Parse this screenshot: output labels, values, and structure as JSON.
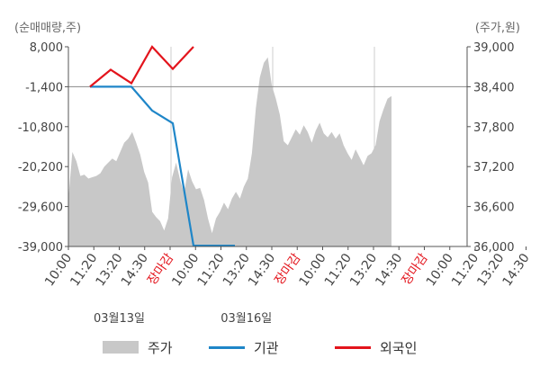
{
  "units": {
    "left": "(순매매량,주)",
    "right": "(주가,원)"
  },
  "legend": {
    "price": "주가",
    "institution": "기관",
    "foreign": "외국인"
  },
  "colors": {
    "price": "#c8c8c8",
    "institution": "#1f86c8",
    "foreign": "#e3141c",
    "axis": "#555555",
    "grid": "#cccccc",
    "market_close": "#e3141c"
  },
  "chart_data": {
    "type": "line",
    "title": "",
    "y_left": {
      "label": "(순매매량,주)",
      "range": [
        -39000,
        8000
      ],
      "ticks": [
        8000,
        -1400,
        -10800,
        -20200,
        -29600,
        -39000
      ],
      "tick_labels": [
        "8,000",
        "-1,400",
        "-10,800",
        "-20,200",
        "-29,600",
        "-39,000"
      ]
    },
    "y_right": {
      "label": "(주가,원)",
      "range": [
        36000,
        39000
      ],
      "ticks": [
        39000,
        38400,
        37800,
        37200,
        36600,
        36000
      ],
      "tick_labels": [
        "39,000",
        "38,400",
        "37,800",
        "37,200",
        "36,600",
        "36,000"
      ]
    },
    "x_labels": [
      "10:00",
      "11:20",
      "13:20",
      "14:30",
      "장마감",
      "10:00",
      "11:20",
      "13:20",
      "14:30",
      "장마감",
      "10:00",
      "11:20",
      "13:20",
      "14:30",
      "장마감",
      "10:00",
      "11:20",
      "13:20",
      "14:30"
    ],
    "x_label_is_close": [
      false,
      false,
      false,
      false,
      true,
      false,
      false,
      false,
      false,
      true,
      false,
      false,
      false,
      false,
      true,
      false,
      false,
      false,
      false
    ],
    "date_labels": [
      {
        "text": "03월13일",
        "at_label_index": 2
      },
      {
        "text": "03월16일",
        "at_label_index": 7
      }
    ],
    "series": [
      {
        "name": "주가",
        "kind": "area",
        "axis": "right",
        "points": [
          [
            0,
            36720
          ],
          [
            1,
            37420
          ],
          [
            2,
            37280
          ],
          [
            3,
            37060
          ],
          [
            4,
            37080
          ],
          [
            5,
            37020
          ],
          [
            6,
            37040
          ],
          [
            7,
            37060
          ],
          [
            8,
            37100
          ],
          [
            9,
            37200
          ],
          [
            10,
            37260
          ],
          [
            11,
            37320
          ],
          [
            12,
            37280
          ],
          [
            13,
            37420
          ],
          [
            14,
            37560
          ],
          [
            15,
            37620
          ],
          [
            16,
            37720
          ],
          [
            17,
            37560
          ],
          [
            18,
            37380
          ],
          [
            19,
            37120
          ],
          [
            20,
            36960
          ],
          [
            21,
            36520
          ],
          [
            22,
            36440
          ],
          [
            23,
            36380
          ],
          [
            24,
            36240
          ],
          [
            25,
            36420
          ],
          [
            26,
            37040
          ],
          [
            27,
            37260
          ],
          [
            28,
            37000
          ],
          [
            29,
            36800
          ],
          [
            30,
            37160
          ],
          [
            31,
            36980
          ],
          [
            32,
            36860
          ],
          [
            33,
            36880
          ],
          [
            34,
            36700
          ],
          [
            35,
            36420
          ],
          [
            36,
            36200
          ],
          [
            37,
            36420
          ],
          [
            38,
            36520
          ],
          [
            39,
            36660
          ],
          [
            40,
            36560
          ],
          [
            41,
            36720
          ],
          [
            42,
            36820
          ],
          [
            43,
            36720
          ],
          [
            44,
            36900
          ],
          [
            45,
            37020
          ],
          [
            46,
            37400
          ],
          [
            47,
            38080
          ],
          [
            48,
            38540
          ],
          [
            49,
            38760
          ],
          [
            50,
            38840
          ],
          [
            51,
            38420
          ],
          [
            52,
            38220
          ],
          [
            53,
            37980
          ],
          [
            54,
            37580
          ],
          [
            55,
            37520
          ],
          [
            56,
            37640
          ],
          [
            57,
            37760
          ],
          [
            58,
            37680
          ],
          [
            59,
            37820
          ],
          [
            60,
            37720
          ],
          [
            61,
            37560
          ],
          [
            62,
            37740
          ],
          [
            63,
            37860
          ],
          [
            64,
            37700
          ],
          [
            65,
            37640
          ],
          [
            66,
            37720
          ],
          [
            67,
            37620
          ],
          [
            68,
            37700
          ],
          [
            69,
            37520
          ],
          [
            70,
            37400
          ],
          [
            71,
            37300
          ],
          [
            72,
            37460
          ],
          [
            73,
            37340
          ],
          [
            74,
            37220
          ],
          [
            75,
            37360
          ],
          [
            76,
            37400
          ],
          [
            77,
            37520
          ],
          [
            78,
            37880
          ],
          [
            79,
            38060
          ],
          [
            80,
            38220
          ],
          [
            81,
            38260
          ]
        ]
      },
      {
        "name": "기관",
        "kind": "line",
        "axis": "left",
        "points": [
          [
            0,
            -1400
          ],
          [
            1,
            -1400
          ],
          [
            2,
            -1400
          ],
          [
            3,
            -7000
          ],
          [
            4,
            -10000
          ],
          [
            5,
            -38800
          ],
          [
            6,
            -38800
          ],
          [
            7,
            -38800
          ]
        ]
      },
      {
        "name": "외국인",
        "kind": "line",
        "axis": "left",
        "points": [
          [
            0,
            -1400
          ],
          [
            1,
            2600
          ],
          [
            2,
            -600
          ],
          [
            3,
            8000
          ],
          [
            4,
            2800
          ],
          [
            5,
            8000
          ]
        ]
      }
    ],
    "grid": true,
    "legend_position": "bottom"
  }
}
